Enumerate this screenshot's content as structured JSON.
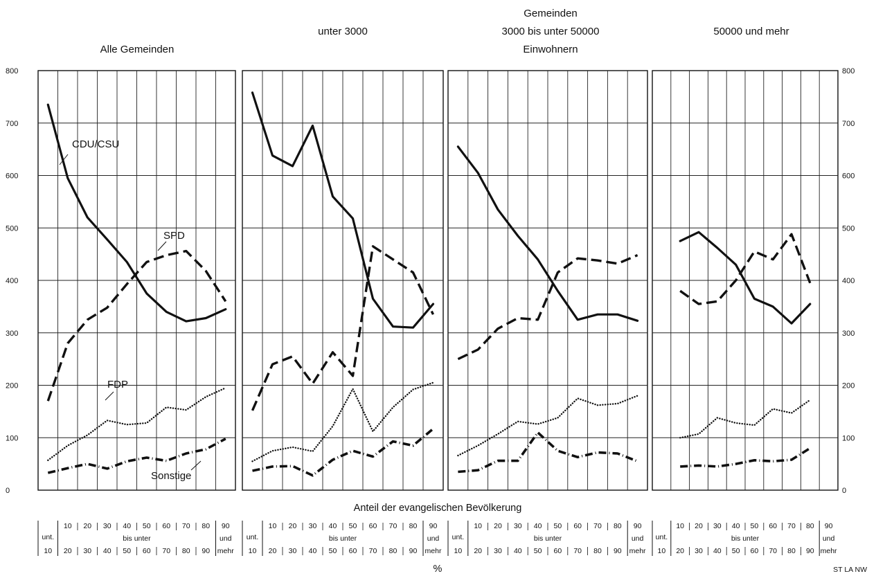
{
  "chart_data": [
    {
      "type": "line",
      "title": "Alle Gemeinden",
      "categories": [
        "unt. 10",
        "10-20",
        "20-30",
        "30-40",
        "40-50",
        "50-60",
        "60-70",
        "70-80",
        "80-90",
        "90 und mehr"
      ],
      "ylim": [
        0,
        800
      ],
      "series": [
        {
          "name": "CDU/CSU",
          "values": [
            735,
            595,
            520,
            478,
            435,
            375,
            340,
            322,
            328,
            345
          ]
        },
        {
          "name": "SPD",
          "values": [
            170,
            280,
            325,
            348,
            393,
            435,
            448,
            456,
            418,
            360
          ]
        },
        {
          "name": "FDP",
          "values": [
            57,
            85,
            105,
            133,
            125,
            128,
            158,
            153,
            178,
            195
          ]
        },
        {
          "name": "Sonstige",
          "values": [
            33,
            42,
            50,
            41,
            55,
            62,
            56,
            70,
            78,
            98
          ]
        }
      ]
    },
    {
      "type": "line",
      "title": "unter 3000",
      "categories": [
        "unt. 10",
        "10-20",
        "20-30",
        "30-40",
        "40-50",
        "50-60",
        "60-70",
        "70-80",
        "80-90",
        "90 und mehr"
      ],
      "ylim": [
        0,
        800
      ],
      "series": [
        {
          "name": "CDU/CSU",
          "values": [
            758,
            638,
            618,
            695,
            560,
            518,
            365,
            312,
            310,
            355
          ]
        },
        {
          "name": "SPD",
          "values": [
            152,
            240,
            255,
            203,
            263,
            218,
            465,
            440,
            415,
            335
          ]
        },
        {
          "name": "FDP",
          "values": [
            55,
            75,
            82,
            74,
            122,
            193,
            112,
            158,
            192,
            205
          ]
        },
        {
          "name": "Sonstige",
          "values": [
            37,
            45,
            46,
            28,
            58,
            75,
            64,
            93,
            85,
            117
          ]
        }
      ]
    },
    {
      "type": "line",
      "title": "Gemeinden 3000 bis unter 50000 Einwohnern",
      "categories": [
        "unt. 10",
        "10-20",
        "20-30",
        "30-40",
        "40-50",
        "50-60",
        "60-70",
        "70-80",
        "80-90",
        "90 und mehr"
      ],
      "ylim": [
        0,
        800
      ],
      "series": [
        {
          "name": "CDU/CSU",
          "values": [
            655,
            605,
            535,
            485,
            440,
            380,
            325,
            335,
            335,
            323
          ]
        },
        {
          "name": "SPD",
          "values": [
            250,
            268,
            308,
            328,
            325,
            415,
            442,
            438,
            432,
            448
          ]
        },
        {
          "name": "FDP",
          "values": [
            66,
            85,
            107,
            131,
            126,
            138,
            175,
            162,
            165,
            180
          ]
        },
        {
          "name": "Sonstige",
          "values": [
            35,
            38,
            56,
            56,
            110,
            75,
            63,
            72,
            70,
            55
          ]
        }
      ]
    },
    {
      "type": "line",
      "title": "50000 und mehr",
      "categories": [
        "unt. 10",
        "10-20",
        "20-30",
        "30-40",
        "40-50",
        "50-60",
        "60-70",
        "70-80",
        "80-90",
        "90 und mehr"
      ],
      "ylim": [
        0,
        800
      ],
      "series": [
        {
          "name": "CDU/CSU",
          "values": [
            null,
            475,
            492,
            462,
            430,
            365,
            350,
            318,
            355,
            null
          ]
        },
        {
          "name": "SPD",
          "values": [
            null,
            380,
            355,
            360,
            400,
            455,
            440,
            488,
            395,
            null
          ]
        },
        {
          "name": "FDP",
          "values": [
            null,
            100,
            107,
            138,
            128,
            124,
            155,
            147,
            172,
            null
          ]
        },
        {
          "name": "Sonstige",
          "values": [
            null,
            45,
            47,
            45,
            50,
            57,
            55,
            58,
            80,
            null
          ]
        }
      ]
    }
  ],
  "y_ticks": [
    "0",
    "100",
    "200",
    "300",
    "400",
    "500",
    "600",
    "700",
    "800"
  ],
  "headings": {
    "panel1": "Alle Gemeinden",
    "panel2": "unter 3000",
    "panel3_line1": "Gemeinden",
    "panel3_line2": "3000 bis unter 50000",
    "panel3_line3": "Einwohnern",
    "panel4": "50000 und mehr"
  },
  "annotations": {
    "cdu": "CDU/CSU",
    "spd": "SPD",
    "fdp": "FDP",
    "sonstige": "Sonstige"
  },
  "x_axis": {
    "title": "Anteil der evangelischen Bevölkerung",
    "unit": "%",
    "unt": "unt.",
    "ten": "10",
    "bis_unter": "bis unter",
    "und": "und",
    "mehr": "mehr",
    "upper_marks": [
      "10",
      "20",
      "30",
      "40",
      "50",
      "60",
      "70",
      "80"
    ],
    "lower_marks": [
      "20",
      "30",
      "40",
      "50",
      "60",
      "70",
      "80",
      "90"
    ],
    "ninety": "90"
  },
  "source": "ST LA NW",
  "colors": {
    "ink": "#111111",
    "background": "#ffffff"
  }
}
